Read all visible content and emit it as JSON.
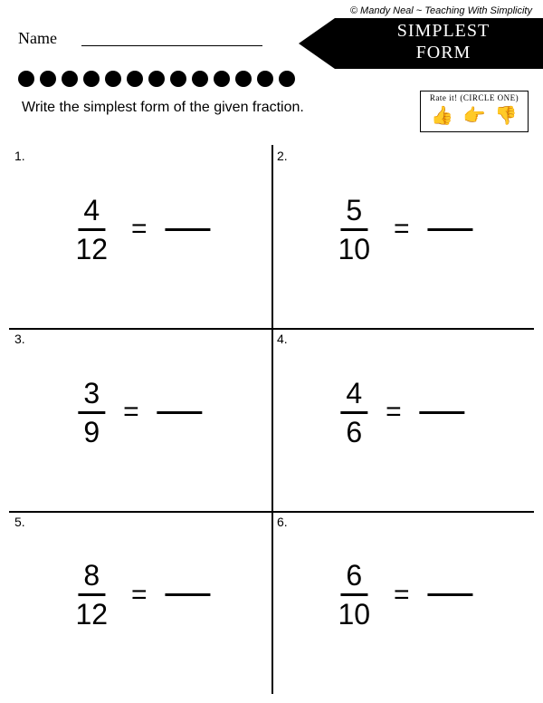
{
  "copyright": "© Mandy Neal ~ Teaching With Simplicity",
  "name_label": "Name",
  "title_line1": "SIMPLEST",
  "title_line2": "FORM",
  "instructions": "Write the simplest form of the given fraction.",
  "rate_title": "Rate it! (CIRCLE ONE)",
  "dot_count": 13,
  "problems": [
    {
      "n": "1.",
      "num": "4",
      "den": "12"
    },
    {
      "n": "2.",
      "num": "5",
      "den": "10"
    },
    {
      "n": "3.",
      "num": "3",
      "den": "9"
    },
    {
      "n": "4.",
      "num": "4",
      "den": "6"
    },
    {
      "n": "5.",
      "num": "8",
      "den": "12"
    },
    {
      "n": "6.",
      "num": "6",
      "den": "10"
    }
  ],
  "colors": {
    "bg": "#ffffff",
    "fg": "#000000"
  }
}
